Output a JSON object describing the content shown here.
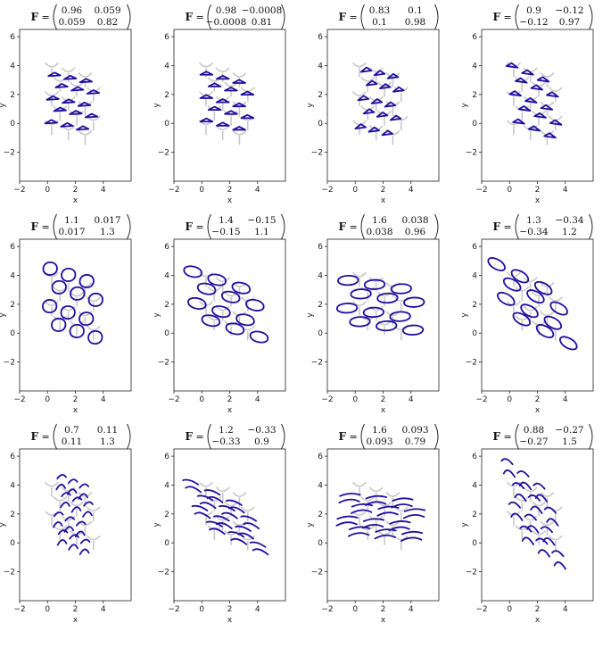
{
  "figure": {
    "description_label": "F",
    "axis": {
      "xlabel": "x",
      "ylabel": "y",
      "xticks": [
        "−2",
        "0",
        "2",
        "4"
      ],
      "yticks": [
        "−2",
        "0",
        "2",
        "4",
        "6"
      ]
    },
    "colors": {
      "deformed": "#1f0f9e",
      "reference": "#c8c8c8",
      "axes": "#222222"
    }
  },
  "chart_data": [
    {
      "type": "line",
      "title": "F",
      "matrix": [
        [
          "0.96",
          "0.059"
        ],
        [
          "0.059",
          "0.82"
        ]
      ],
      "F": [
        0.96,
        0.059,
        0.059,
        0.82
      ],
      "motif": "sparse",
      "xlabel": "x",
      "ylabel": "y",
      "xlim": [
        -2,
        6
      ],
      "ylim": [
        -4,
        6.5
      ]
    },
    {
      "type": "line",
      "title": "F",
      "matrix": [
        [
          "0.98",
          "−0.0008"
        ],
        [
          "−0.0008",
          "0.81"
        ]
      ],
      "F": [
        0.98,
        -0.0008,
        -0.0008,
        0.81
      ],
      "motif": "sparse",
      "xlabel": "x",
      "ylabel": "y",
      "xlim": [
        -2,
        6
      ],
      "ylim": [
        -4,
        6.5
      ]
    },
    {
      "type": "line",
      "title": "F",
      "matrix": [
        [
          "0.83",
          "0.1"
        ],
        [
          "0.1",
          "0.98"
        ]
      ],
      "F": [
        0.83,
        0.1,
        0.1,
        0.98
      ],
      "motif": "sparse",
      "xlabel": "x",
      "ylabel": "y",
      "xlim": [
        -2,
        6
      ],
      "ylim": [
        -4,
        6.5
      ]
    },
    {
      "type": "line",
      "title": "F",
      "matrix": [
        [
          "0.9",
          "−0.12"
        ],
        [
          "−0.12",
          "0.97"
        ]
      ],
      "F": [
        0.9,
        -0.12,
        -0.12,
        0.97
      ],
      "motif": "sparse",
      "xlabel": "x",
      "ylabel": "y",
      "xlim": [
        -2,
        6
      ],
      "ylim": [
        -4,
        6.5
      ]
    },
    {
      "type": "line",
      "title": "F",
      "matrix": [
        [
          "1.1",
          "0.017"
        ],
        [
          "0.017",
          "1.3"
        ]
      ],
      "F": [
        1.1,
        0.017,
        0.017,
        1.3
      ],
      "motif": "cells",
      "xlabel": "x",
      "ylabel": "y",
      "xlim": [
        -2,
        6
      ],
      "ylim": [
        -4,
        6.5
      ]
    },
    {
      "type": "line",
      "title": "F",
      "matrix": [
        [
          "1.4",
          "−0.15"
        ],
        [
          "−0.15",
          "1.1"
        ]
      ],
      "F": [
        1.4,
        -0.15,
        -0.15,
        1.1
      ],
      "motif": "cells",
      "xlabel": "x",
      "ylabel": "y",
      "xlim": [
        -2,
        6
      ],
      "ylim": [
        -4,
        6.5
      ]
    },
    {
      "type": "line",
      "title": "F",
      "matrix": [
        [
          "1.6",
          "0.038"
        ],
        [
          "0.038",
          "0.96"
        ]
      ],
      "F": [
        1.6,
        0.038,
        0.038,
        0.96
      ],
      "motif": "cells",
      "xlabel": "x",
      "ylabel": "y",
      "xlim": [
        -2,
        6
      ],
      "ylim": [
        -4,
        6.5
      ]
    },
    {
      "type": "line",
      "title": "F",
      "matrix": [
        [
          "1.3",
          "−0.34"
        ],
        [
          "−0.34",
          "1.2"
        ]
      ],
      "F": [
        1.3,
        -0.34,
        -0.34,
        1.2
      ],
      "motif": "cells",
      "xlabel": "x",
      "ylabel": "y",
      "xlim": [
        -2,
        6
      ],
      "ylim": [
        -4,
        6.5
      ]
    },
    {
      "type": "line",
      "title": "F",
      "matrix": [
        [
          "0.7",
          "0.11"
        ],
        [
          "0.11",
          "1.3"
        ]
      ],
      "F": [
        0.7,
        0.11,
        0.11,
        1.3
      ],
      "motif": "arcs",
      "xlabel": "x",
      "ylabel": "y",
      "xlim": [
        -2,
        6
      ],
      "ylim": [
        -4,
        6.5
      ]
    },
    {
      "type": "line",
      "title": "F",
      "matrix": [
        [
          "1.2",
          "−0.33"
        ],
        [
          "−0.33",
          "0.9"
        ]
      ],
      "F": [
        1.2,
        -0.33,
        -0.33,
        0.9
      ],
      "motif": "arcs",
      "xlabel": "x",
      "ylabel": "y",
      "xlim": [
        -2,
        6
      ],
      "ylim": [
        -4,
        6.5
      ]
    },
    {
      "type": "line",
      "title": "F",
      "matrix": [
        [
          "1.6",
          "0.093"
        ],
        [
          "0.093",
          "0.79"
        ]
      ],
      "F": [
        1.6,
        0.093,
        0.093,
        0.79
      ],
      "motif": "arcs",
      "xlabel": "x",
      "ylabel": "y",
      "xlim": [
        -2,
        6
      ],
      "ylim": [
        -4,
        6.5
      ]
    },
    {
      "type": "line",
      "title": "F",
      "matrix": [
        [
          "0.88",
          "−0.27"
        ],
        [
          "−0.27",
          "1.5"
        ]
      ],
      "F": [
        0.88,
        -0.27,
        -0.27,
        1.5
      ],
      "motif": "arcs",
      "xlabel": "x",
      "ylabel": "y",
      "xlim": [
        -2,
        6
      ],
      "ylim": [
        -4,
        6.5
      ]
    }
  ]
}
